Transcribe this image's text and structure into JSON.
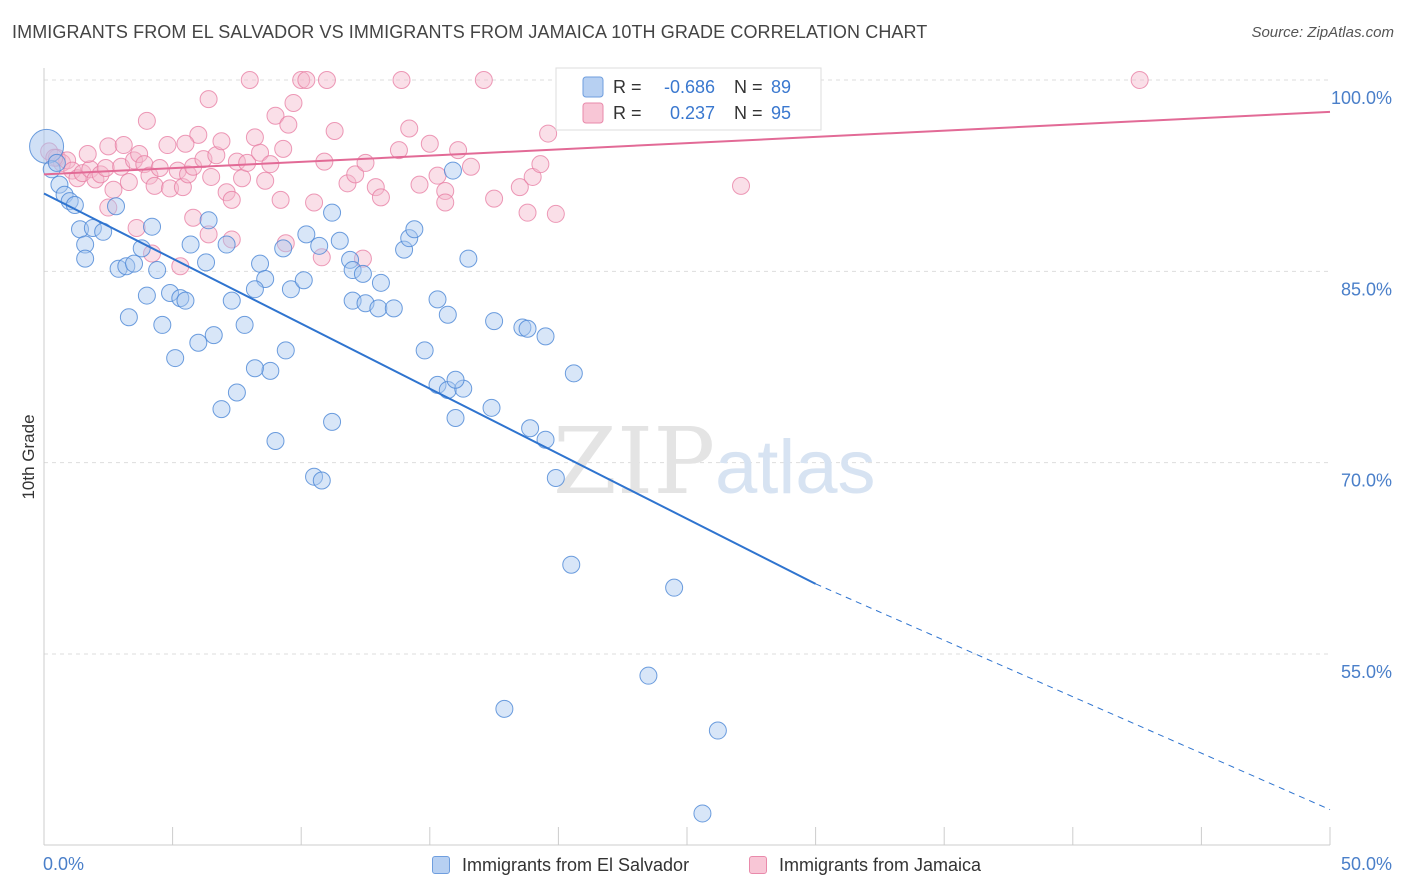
{
  "title": "IMMIGRANTS FROM EL SALVADOR VS IMMIGRANTS FROM JAMAICA 10TH GRADE CORRELATION CHART",
  "source": "Source: ZipAtlas.com",
  "watermark": {
    "zip": "ZIP",
    "atlas": "atlas"
  },
  "colors": {
    "blue": "#4a86d6",
    "blue_fill": "#a9c7ef",
    "blue_line": "#2f74cf",
    "pink": "#e77aa0",
    "pink_fill": "#f5b7cc",
    "pink_line": "#e26a96",
    "tick": "#4a7fc9",
    "grid": "#dddddd"
  },
  "legend_box": {
    "rows": [
      {
        "r_label": "R =",
        "r_value": "-0.686",
        "n_label": "N =",
        "n_value": "89",
        "series": "blue"
      },
      {
        "r_label": "R =",
        "r_value": "0.237",
        "n_label": "N =",
        "n_value": "95",
        "series": "pink"
      }
    ]
  },
  "bottom_legend": [
    {
      "label": "Immigrants from El Salvador",
      "series": "blue"
    },
    {
      "label": "Immigrants from Jamaica",
      "series": "pink"
    }
  ],
  "chart_data": {
    "type": "scatter",
    "title": "IMMIGRANTS FROM EL SALVADOR VS IMMIGRANTS FROM JAMAICA 10TH GRADE CORRELATION CHART",
    "xlabel": "",
    "ylabel": "10th Grade",
    "xlim": [
      0,
      50
    ],
    "ylim": [
      42,
      100
    ],
    "x_tick_labels": [
      {
        "value": 0,
        "label": "0.0%"
      },
      {
        "value": 50,
        "label": "50.0%"
      }
    ],
    "y_tick_labels": [
      {
        "value": 100,
        "label": "100.0%"
      },
      {
        "value": 85,
        "label": "85.0%"
      },
      {
        "value": 70,
        "label": "70.0%"
      },
      {
        "value": 55,
        "label": "55.0%"
      }
    ],
    "grid": true,
    "series": [
      {
        "name": "Immigrants from El Salvador",
        "color": "blue",
        "trend": {
          "x0": 0,
          "y0": 91.1,
          "x1": 30,
          "y1": 60.5,
          "dash_to_x": 50,
          "dash_to_y": 42.8
        },
        "points": [
          [
            0.1,
            94.8
          ],
          [
            0.3,
            93.0
          ],
          [
            0.6,
            91.8
          ],
          [
            0.8,
            91.0
          ],
          [
            1.0,
            90.5
          ],
          [
            1.2,
            90.2
          ],
          [
            1.4,
            88.3
          ],
          [
            1.6,
            87.1
          ],
          [
            1.9,
            88.4
          ],
          [
            2.3,
            88.1
          ],
          [
            1.6,
            86.0
          ],
          [
            2.8,
            90.1
          ],
          [
            2.9,
            85.2
          ],
          [
            3.2,
            85.4
          ],
          [
            3.5,
            85.6
          ],
          [
            3.8,
            86.8
          ],
          [
            4.2,
            88.5
          ],
          [
            4.4,
            85.1
          ],
          [
            4.0,
            83.1
          ],
          [
            4.9,
            83.3
          ],
          [
            5.3,
            82.9
          ],
          [
            5.5,
            82.7
          ],
          [
            3.3,
            81.4
          ],
          [
            4.6,
            80.8
          ],
          [
            5.7,
            87.1
          ],
          [
            6.3,
            85.7
          ],
          [
            6.4,
            89.0
          ],
          [
            7.1,
            87.1
          ],
          [
            7.3,
            82.7
          ],
          [
            7.8,
            80.8
          ],
          [
            6.6,
            80.0
          ],
          [
            6.0,
            79.4
          ],
          [
            5.1,
            78.2
          ],
          [
            8.4,
            85.6
          ],
          [
            8.6,
            84.4
          ],
          [
            8.2,
            83.6
          ],
          [
            9.3,
            86.8
          ],
          [
            9.6,
            83.6
          ],
          [
            10.1,
            84.3
          ],
          [
            10.7,
            87.0
          ],
          [
            10.2,
            87.9
          ],
          [
            11.2,
            89.6
          ],
          [
            11.5,
            87.4
          ],
          [
            11.9,
            85.9
          ],
          [
            12.0,
            85.1
          ],
          [
            12.4,
            84.8
          ],
          [
            12.0,
            82.7
          ],
          [
            12.5,
            82.5
          ],
          [
            13.0,
            82.1
          ],
          [
            13.6,
            82.1
          ],
          [
            13.1,
            84.1
          ],
          [
            14.0,
            86.7
          ],
          [
            14.2,
            87.6
          ],
          [
            14.4,
            88.3
          ],
          [
            15.3,
            82.8
          ],
          [
            15.7,
            81.6
          ],
          [
            14.8,
            78.8
          ],
          [
            9.4,
            78.8
          ],
          [
            8.8,
            77.2
          ],
          [
            8.2,
            77.4
          ],
          [
            7.5,
            75.5
          ],
          [
            6.9,
            74.2
          ],
          [
            11.2,
            73.2
          ],
          [
            9.0,
            71.7
          ],
          [
            10.5,
            68.9
          ],
          [
            10.8,
            68.6
          ],
          [
            15.3,
            76.1
          ],
          [
            15.7,
            75.7
          ],
          [
            16.3,
            75.8
          ],
          [
            16.0,
            76.5
          ],
          [
            16.5,
            86.0
          ],
          [
            17.5,
            81.1
          ],
          [
            17.4,
            74.3
          ],
          [
            16.0,
            73.5
          ],
          [
            18.6,
            80.6
          ],
          [
            18.8,
            80.5
          ],
          [
            19.5,
            79.9
          ],
          [
            20.6,
            77.0
          ],
          [
            18.9,
            72.7
          ],
          [
            19.5,
            71.8
          ],
          [
            19.9,
            68.8
          ],
          [
            20.5,
            62.0
          ],
          [
            15.9,
            92.9
          ],
          [
            24.5,
            60.2
          ],
          [
            23.5,
            53.3
          ],
          [
            26.2,
            49.0
          ],
          [
            17.9,
            50.7
          ],
          [
            25.6,
            42.5
          ],
          [
            0.5,
            93.5
          ]
        ]
      },
      {
        "name": "Immigrants from Jamaica",
        "color": "pink",
        "trend": {
          "x0": 0,
          "y0": 92.6,
          "x1": 50,
          "y1": 97.5
        },
        "points": [
          [
            0.2,
            94.4
          ],
          [
            0.5,
            93.9
          ],
          [
            0.7,
            93.5
          ],
          [
            0.9,
            93.7
          ],
          [
            1.1,
            92.9
          ],
          [
            1.3,
            92.3
          ],
          [
            1.5,
            92.7
          ],
          [
            1.8,
            93.0
          ],
          [
            2.0,
            92.2
          ],
          [
            2.2,
            92.6
          ],
          [
            2.4,
            93.1
          ],
          [
            2.5,
            94.8
          ],
          [
            2.7,
            91.4
          ],
          [
            3.0,
            93.2
          ],
          [
            3.1,
            94.9
          ],
          [
            3.3,
            92.0
          ],
          [
            3.5,
            93.7
          ],
          [
            3.7,
            94.2
          ],
          [
            3.9,
            93.4
          ],
          [
            4.1,
            92.5
          ],
          [
            4.3,
            91.7
          ],
          [
            4.5,
            93.1
          ],
          [
            4.8,
            94.9
          ],
          [
            4.9,
            91.5
          ],
          [
            5.2,
            92.9
          ],
          [
            5.4,
            91.6
          ],
          [
            5.6,
            92.6
          ],
          [
            5.8,
            93.2
          ],
          [
            6.0,
            95.7
          ],
          [
            6.2,
            93.8
          ],
          [
            6.5,
            92.4
          ],
          [
            6.7,
            94.1
          ],
          [
            6.9,
            95.2
          ],
          [
            7.1,
            91.2
          ],
          [
            7.3,
            90.6
          ],
          [
            7.5,
            93.6
          ],
          [
            7.7,
            92.3
          ],
          [
            7.9,
            93.5
          ],
          [
            8.2,
            95.5
          ],
          [
            8.4,
            94.3
          ],
          [
            8.6,
            92.1
          ],
          [
            8.8,
            93.4
          ],
          [
            9.0,
            97.2
          ],
          [
            9.3,
            94.6
          ],
          [
            9.5,
            96.5
          ],
          [
            9.7,
            98.2
          ],
          [
            10.0,
            100.0
          ],
          [
            10.5,
            90.4
          ],
          [
            10.9,
            93.6
          ],
          [
            11.3,
            96.0
          ],
          [
            11.8,
            91.9
          ],
          [
            12.1,
            92.6
          ],
          [
            12.5,
            93.5
          ],
          [
            12.9,
            91.6
          ],
          [
            13.1,
            90.8
          ],
          [
            13.8,
            94.5
          ],
          [
            14.2,
            96.2
          ],
          [
            14.6,
            91.8
          ],
          [
            15.0,
            95.0
          ],
          [
            15.3,
            92.5
          ],
          [
            15.6,
            91.3
          ],
          [
            16.1,
            94.5
          ],
          [
            16.6,
            93.2
          ],
          [
            17.1,
            100.0
          ],
          [
            17.5,
            90.7
          ],
          [
            18.5,
            91.6
          ],
          [
            19.0,
            92.4
          ],
          [
            19.3,
            93.4
          ],
          [
            19.6,
            95.8
          ],
          [
            8.0,
            100.0
          ],
          [
            10.2,
            100.0
          ],
          [
            11.0,
            100.0
          ],
          [
            5.5,
            95.0
          ],
          [
            4.0,
            96.8
          ],
          [
            6.4,
            98.5
          ],
          [
            3.6,
            88.4
          ],
          [
            5.8,
            89.2
          ],
          [
            7.3,
            87.5
          ],
          [
            9.4,
            87.2
          ],
          [
            10.8,
            86.1
          ],
          [
            12.4,
            86.0
          ],
          [
            9.2,
            90.6
          ],
          [
            13.9,
            100.0
          ],
          [
            21.0,
            100.0
          ],
          [
            42.6,
            100.0
          ],
          [
            27.1,
            91.7
          ],
          [
            18.8,
            89.6
          ],
          [
            19.9,
            89.5
          ],
          [
            15.6,
            90.4
          ],
          [
            6.4,
            87.9
          ],
          [
            5.3,
            85.4
          ],
          [
            4.2,
            86.4
          ],
          [
            2.5,
            90.0
          ],
          [
            0.4,
            93.9
          ],
          [
            1.7,
            94.2
          ]
        ]
      }
    ]
  }
}
